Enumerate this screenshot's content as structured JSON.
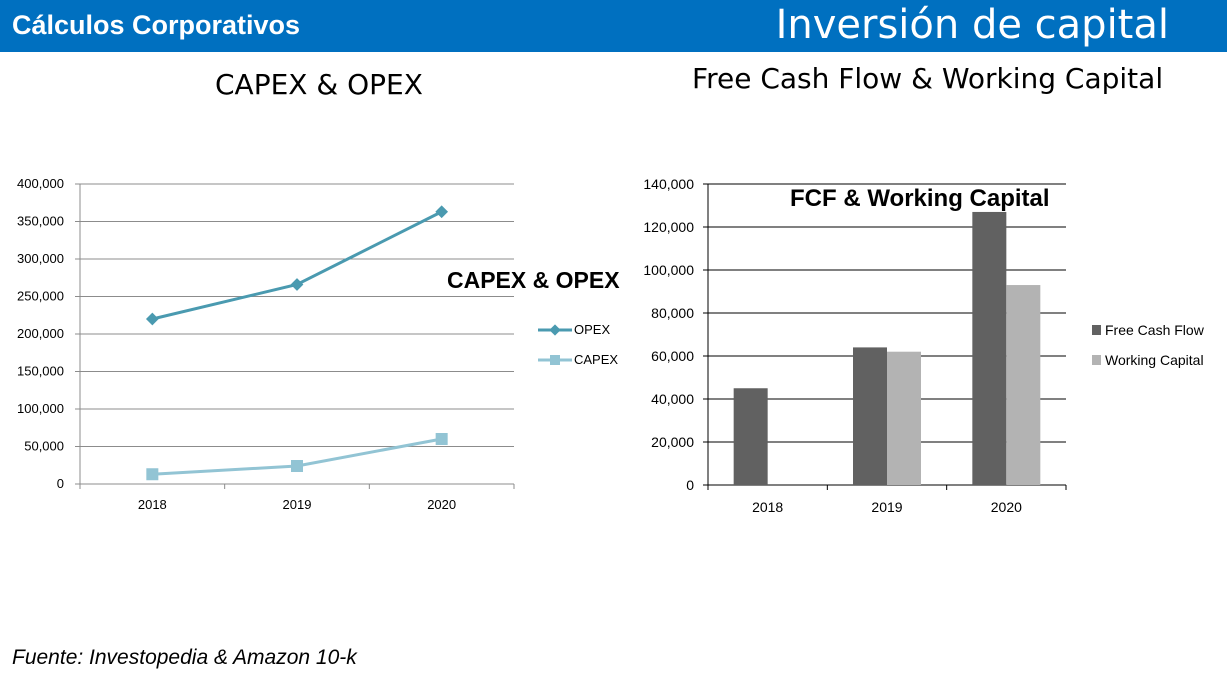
{
  "header": {
    "left_title": "Cálculos Corporativos",
    "right_title": "Inversión de capital",
    "bar_color": "#0070c0"
  },
  "sections": {
    "left_title": "CAPEX & OPEX",
    "right_title": "Free Cash Flow & Working Capital"
  },
  "footer": {
    "source": "Fuente: Investopedia & Amazon 10-k"
  },
  "chart_data": [
    {
      "type": "line",
      "title": "CAPEX & OPEX",
      "categories": [
        "2018",
        "2019",
        "2020"
      ],
      "series": [
        {
          "name": "OPEX",
          "values": [
            220000,
            266000,
            363000
          ],
          "color": "#4a9ab0",
          "marker": "diamond"
        },
        {
          "name": "CAPEX",
          "values": [
            13000,
            24000,
            60000
          ],
          "color": "#92c4d4",
          "marker": "square"
        }
      ],
      "ylim": [
        0,
        400000
      ],
      "yticks": [
        "0",
        "50,000",
        "100,000",
        "150,000",
        "200,000",
        "250,000",
        "300,000",
        "350,000",
        "400,000"
      ],
      "grid": true,
      "legend": "right"
    },
    {
      "type": "bar",
      "title": "FCF & Working Capital",
      "categories": [
        "2018",
        "2019",
        "2020"
      ],
      "series": [
        {
          "name": "Free Cash Flow",
          "values": [
            45000,
            64000,
            127000
          ],
          "color": "#616161"
        },
        {
          "name": "Working Capital",
          "values": [
            0,
            62000,
            93000
          ],
          "color": "#b3b3b3"
        }
      ],
      "ylim": [
        0,
        140000
      ],
      "yticks": [
        "0",
        "20,000",
        "40,000",
        "60,000",
        "80,000",
        "100,000",
        "120,000",
        "140,000"
      ],
      "grid": true,
      "legend": "right"
    }
  ]
}
